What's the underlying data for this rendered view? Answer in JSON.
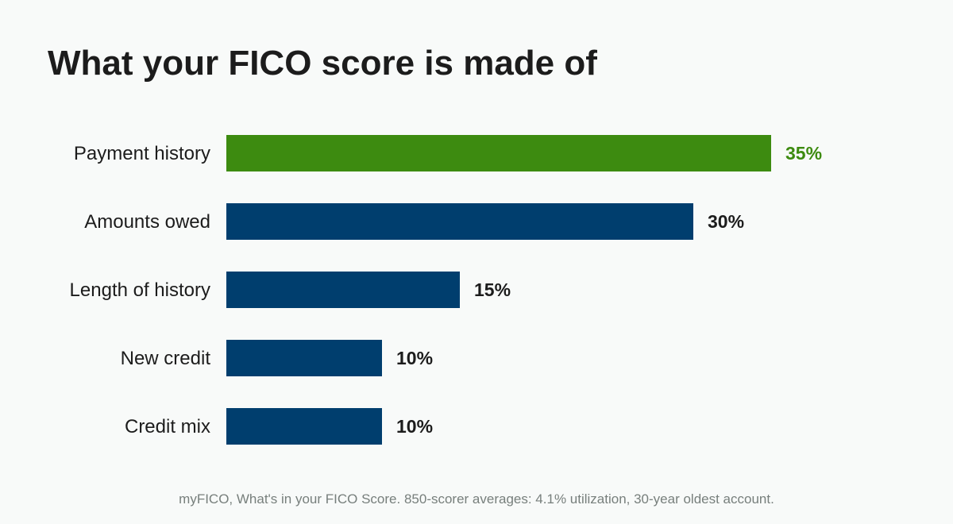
{
  "title": "What your FICO score is made of",
  "source": "myFICO, What's in your FICO Score. 850-scorer averages: 4.1% utilization, 30-year oldest account.",
  "colors": {
    "highlight": "#3d8b10",
    "bar": "#003e6e",
    "label": "#1c1c1c"
  },
  "chart_data": {
    "type": "bar",
    "orientation": "horizontal",
    "categories": [
      "Payment history",
      "Amounts owed",
      "Length of history",
      "New credit",
      "Credit mix"
    ],
    "values": [
      35,
      30,
      15,
      10,
      10
    ],
    "value_labels": [
      "35%",
      "30%",
      "15%",
      "10%",
      "10%"
    ],
    "highlight_index": 0,
    "xlim": [
      0,
      35
    ],
    "grid": false,
    "legend": "none"
  }
}
